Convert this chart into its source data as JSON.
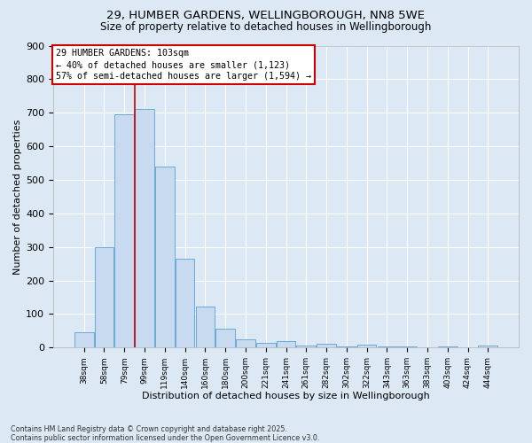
{
  "title_line1": "29, HUMBER GARDENS, WELLINGBOROUGH, NN8 5WE",
  "title_line2": "Size of property relative to detached houses in Wellingborough",
  "xlabel": "Distribution of detached houses by size in Wellingborough",
  "ylabel": "Number of detached properties",
  "footer": "Contains HM Land Registry data © Crown copyright and database right 2025.\nContains public sector information licensed under the Open Government Licence v3.0.",
  "categories": [
    "38sqm",
    "58sqm",
    "79sqm",
    "99sqm",
    "119sqm",
    "140sqm",
    "160sqm",
    "180sqm",
    "200sqm",
    "221sqm",
    "241sqm",
    "261sqm",
    "282sqm",
    "302sqm",
    "322sqm",
    "343sqm",
    "363sqm",
    "383sqm",
    "403sqm",
    "424sqm",
    "444sqm"
  ],
  "values": [
    45,
    300,
    695,
    710,
    540,
    265,
    122,
    57,
    25,
    14,
    18,
    7,
    10,
    3,
    9,
    3,
    3,
    1,
    3,
    1,
    6
  ],
  "bar_color": "#c8daf0",
  "bar_edge_color": "#6aaad4",
  "background_color": "#dce9f5",
  "grid_color": "#ffffff",
  "vline_color": "#cc0000",
  "vline_bar_index": 3,
  "annotation_text": "29 HUMBER GARDENS: 103sqm\n← 40% of detached houses are smaller (1,123)\n57% of semi-detached houses are larger (1,594) →",
  "annotation_box_facecolor": "#ffffff",
  "annotation_box_edgecolor": "#cc0000",
  "ylim": [
    0,
    900
  ],
  "yticks": [
    0,
    100,
    200,
    300,
    400,
    500,
    600,
    700,
    800,
    900
  ]
}
